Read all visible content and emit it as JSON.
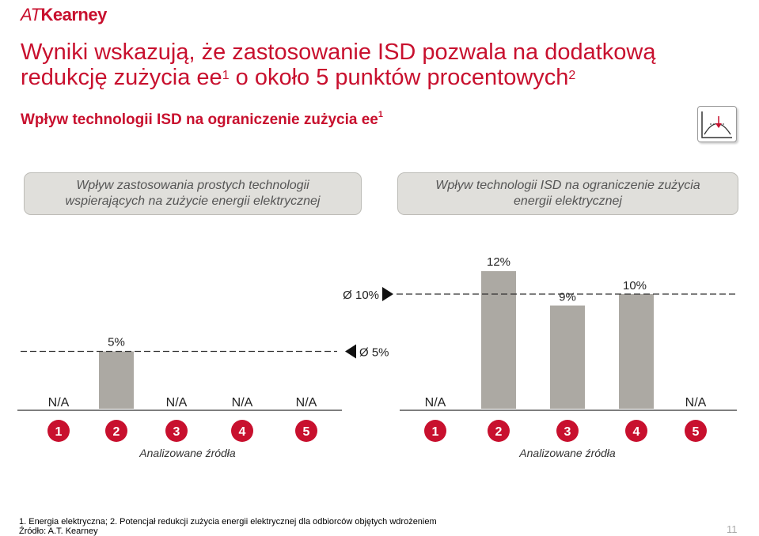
{
  "logo": {
    "prefix": "AT",
    "name": "Kearney"
  },
  "title": {
    "line1": "Wyniki wskazują, że zastosowanie ISD pozwala na dodatkową",
    "line2a": "redukcję zużycia ee",
    "line2_sup1": "1",
    "line2b": " o około 5 punktów procentowych",
    "line2_sup2": "2"
  },
  "subtitle": {
    "text": "Wpływ technologii ISD na ograniczenie zużycia ee",
    "sup": "1"
  },
  "icon": "chart-curve-icon",
  "colors": {
    "accent": "#c8102e",
    "bar": "#aca9a3",
    "panel": "#e0dfdb"
  },
  "chart_data": [
    {
      "type": "bar",
      "title": "Wpływ zastosowania prostych technologii wspierających na zużycie energii elektrycznej",
      "xlabel": "Analizowane źródła",
      "categories": [
        "1",
        "2",
        "3",
        "4",
        "5"
      ],
      "values": [
        null,
        5,
        null,
        null,
        null
      ],
      "value_labels": [
        "",
        "5%",
        "",
        "",
        ""
      ],
      "na_labels": [
        "N/A",
        "",
        "N/A",
        "N/A",
        "N/A"
      ],
      "average": {
        "label": "Ø 5%",
        "value": 5
      },
      "ylim": [
        0,
        12
      ]
    },
    {
      "type": "bar",
      "title": "Wpływ technologii ISD na ograniczenie zużycia energii elektrycznej",
      "xlabel": "Analizowane źródła",
      "categories": [
        "1",
        "2",
        "3",
        "4",
        "5"
      ],
      "values": [
        null,
        12,
        9,
        10,
        null
      ],
      "value_labels": [
        "",
        "12%",
        "9%",
        "10%",
        ""
      ],
      "na_labels": [
        "N/A",
        "",
        "",
        "",
        "N/A"
      ],
      "average": {
        "label": "Ø 10%",
        "value": 10
      },
      "ylim": [
        0,
        12
      ]
    }
  ],
  "footer": {
    "footnote": "1. Energia elektryczna; 2. Potencjał redukcji zużycia energii elektrycznej dla odbiorców objętych wdrożeniem",
    "source": "Źródło: A.T. Kearney",
    "page": "11"
  }
}
